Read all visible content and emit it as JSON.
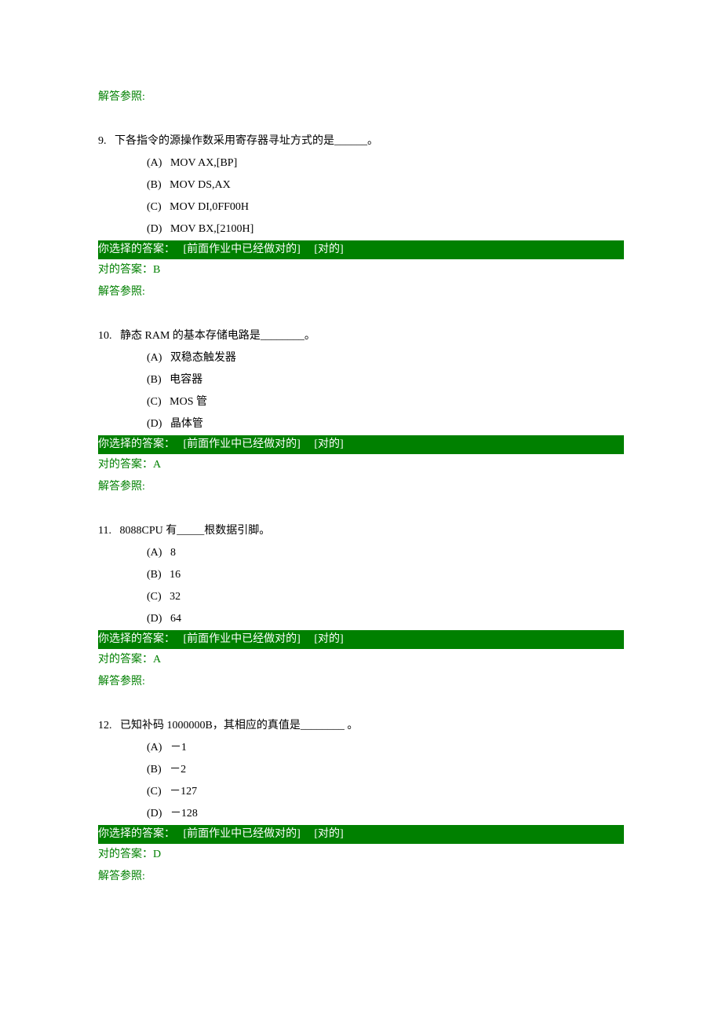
{
  "labels": {
    "ref": "解答参照:",
    "your_choice_prefix": "你选择的答案：   [前面作业中已经做对的]     [对的]",
    "correct_prefix": "对的答案："
  },
  "questions": [
    {
      "num": "9.",
      "stem": "下各指令的源操作数采用寄存器寻址方式的是______。",
      "options": [
        {
          "key": "(A)",
          "text": "MOV AX,[BP]"
        },
        {
          "key": "(B)",
          "text": "MOV DS,AX"
        },
        {
          "key": "(C)",
          "text": "MOV DI,0FF00H"
        },
        {
          "key": "(D)",
          "text": "MOV BX,[2100H]"
        }
      ],
      "answer": "B"
    },
    {
      "num": "10.",
      "stem": "静态 RAM 的基本存储电路是________。",
      "options": [
        {
          "key": "(A)",
          "text": "双稳态触发器"
        },
        {
          "key": "(B)",
          "text": "电容器"
        },
        {
          "key": "(C)",
          "text": "MOS 管"
        },
        {
          "key": "(D)",
          "text": "晶体管"
        }
      ],
      "answer": "A"
    },
    {
      "num": "11.",
      "stem": "8088CPU 有_____根数据引脚。",
      "options": [
        {
          "key": "(A)",
          "text": "8"
        },
        {
          "key": "(B)",
          "text": "16"
        },
        {
          "key": "(C)",
          "text": "32"
        },
        {
          "key": "(D)",
          "text": "64"
        }
      ],
      "answer": "A"
    },
    {
      "num": "12.",
      "stem": "已知补码 1000000B，其相应的真值是________ 。",
      "options": [
        {
          "key": "(A)",
          "text": "－1"
        },
        {
          "key": "(B)",
          "text": "－2"
        },
        {
          "key": "(C)",
          "text": "－127"
        },
        {
          "key": "(D)",
          "text": "－128"
        }
      ],
      "answer": "D"
    }
  ]
}
